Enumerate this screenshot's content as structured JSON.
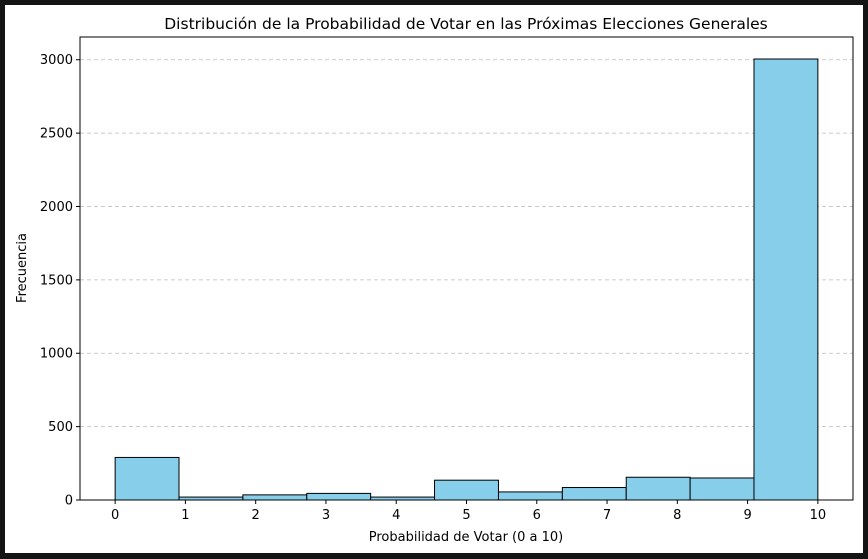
{
  "chart_data": {
    "type": "bar",
    "title": "Distribución de la Probabilidad de Votar en las Próximas Elecciones Generales",
    "xlabel": "Probabilidad de Votar (0 a 10)",
    "ylabel": "Frecuencia",
    "bin_edges": [
      0,
      0.909,
      1.818,
      2.727,
      3.636,
      4.545,
      5.455,
      6.364,
      7.273,
      8.182,
      9.091,
      10
    ],
    "values": [
      290,
      20,
      35,
      45,
      20,
      135,
      55,
      85,
      155,
      150,
      3005
    ],
    "xlim": [
      -0.5,
      10.5
    ],
    "ylim": [
      0,
      3155
    ],
    "xticks": [
      "0",
      "1",
      "2",
      "3",
      "4",
      "5",
      "6",
      "7",
      "8",
      "9",
      "10"
    ],
    "yticks": [
      "0",
      "500",
      "1000",
      "1500",
      "2000",
      "2500",
      "3000"
    ],
    "grid": "y-dashed",
    "bar_color": "#87ceeb",
    "edge_color": "#000000",
    "grid_color": "#bbbbbb",
    "background": "#ffffff"
  }
}
